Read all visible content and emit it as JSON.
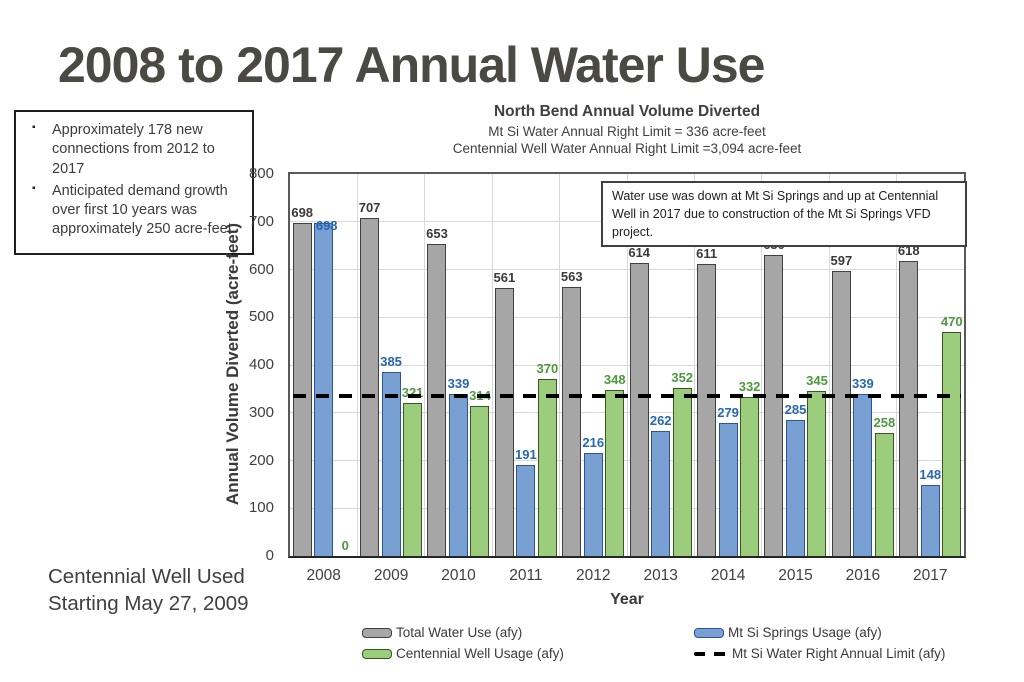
{
  "page_title": "2008 to 2017 Annual Water Use",
  "info_box": {
    "bullets": [
      "Approximately 178 new connections from 2012 to 2017",
      "Anticipated demand growth over first 10 years was approximately 250 acre-feet"
    ]
  },
  "footnote": {
    "lines": [
      "Centennial Well Used",
      "Starting May 27, 2009"
    ]
  },
  "chart_data": {
    "type": "bar",
    "title": "North Bend Annual Volume Diverted",
    "subtitles": [
      "Mt Si Water Annual Right Limit = 336 acre-feet",
      "Centennial Well Water Annual Right Limit =3,094 acre-feet"
    ],
    "annotation": "Water use was down at Mt Si Springs and up at Centennial Well in 2017 due to construction of the Mt Si Springs VFD project.",
    "xlabel": "Year",
    "ylabel": "Annual Volume Diverted (acre-feet)",
    "ylim": [
      0,
      800
    ],
    "ytick_step": 100,
    "grid": true,
    "legend_position": "bottom",
    "categories": [
      "2008",
      "2009",
      "2010",
      "2011",
      "2012",
      "2013",
      "2014",
      "2015",
      "2016",
      "2017"
    ],
    "series": [
      {
        "name": "Total Water Use (afy)",
        "fill": "#A6A6A6",
        "border": "#404040",
        "label_color": "#3A3A3A",
        "values": [
          698,
          707,
          653,
          561,
          563,
          614,
          611,
          630,
          597,
          618
        ]
      },
      {
        "name": "Mt Si Springs Usage (afy)",
        "fill": "#78A0D2",
        "border": "#2F5496",
        "label_color": "#2767B0",
        "values": [
          698,
          385,
          339,
          191,
          216,
          262,
          279,
          285,
          339,
          148
        ]
      },
      {
        "name": "Centennial Well Usage (afy)",
        "fill": "#9BCD7D",
        "border": "#385723",
        "label_color": "#4D9A3E",
        "values": [
          0,
          321,
          314,
          370,
          348,
          352,
          332,
          345,
          258,
          470
        ]
      }
    ],
    "limit_line": {
      "name": "Mt Si Water Right Annual Limit (afy)",
      "value": 336,
      "color": "#000000",
      "style": "dashed"
    }
  }
}
